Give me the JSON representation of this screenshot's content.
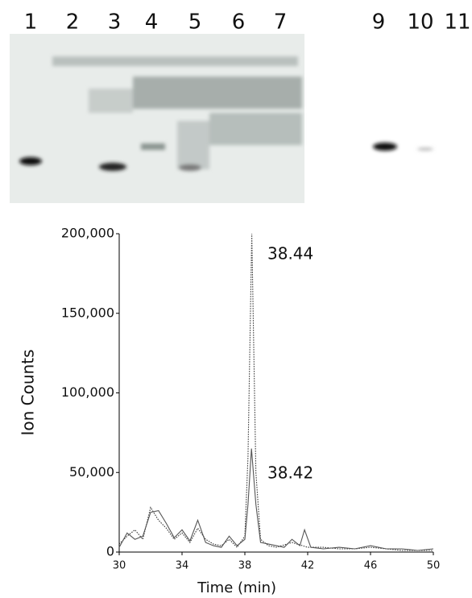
{
  "gel": {
    "lanes": [
      "1",
      "2",
      "3",
      "4",
      "5",
      "6",
      "7",
      "9",
      "10",
      "11"
    ]
  },
  "chart_data": {
    "type": "line",
    "xlabel": "Time (min)",
    "ylabel": "Ion Counts",
    "annotations": [
      "38.44",
      "38.42"
    ],
    "xlim": [
      30,
      50
    ],
    "xticks": [
      30,
      34,
      38,
      42,
      46,
      50
    ],
    "ylim": [
      0,
      200000
    ],
    "yticks": [
      0,
      {
        "value": 50000,
        "label": "50,000"
      },
      {
        "value": 100000,
        "label": "100,000"
      },
      {
        "value": 150000,
        "label": "150,000"
      },
      {
        "value": 200000,
        "label": "200,000"
      }
    ],
    "series": [
      {
        "color": "#333333",
        "dash": true,
        "x": [
          30,
          30.5,
          31,
          31.5,
          32,
          32.5,
          33,
          33.5,
          34,
          34.5,
          35,
          35.5,
          36,
          36.5,
          37,
          37.5,
          38,
          38.2,
          38.44,
          38.7,
          39,
          39.5,
          40,
          41,
          42,
          43,
          44,
          45,
          46,
          47,
          48,
          49,
          50
        ],
        "values": [
          5000,
          10000,
          14000,
          8000,
          28000,
          20000,
          15000,
          8000,
          12000,
          6000,
          15000,
          8000,
          5000,
          4000,
          8000,
          3000,
          10000,
          60000,
          200000,
          50000,
          8000,
          4000,
          3000,
          6000,
          3000,
          3000,
          2000,
          2000,
          3000,
          2000,
          1000,
          1000,
          1000
        ]
      },
      {
        "color": "#555555",
        "dash": false,
        "x": [
          30,
          30.5,
          31,
          31.5,
          32,
          32.5,
          33,
          33.5,
          34,
          34.5,
          35,
          35.5,
          36,
          36.5,
          37,
          37.5,
          38,
          38.2,
          38.42,
          38.7,
          39,
          39.5,
          40,
          40.5,
          41,
          41.5,
          41.8,
          42.2,
          43,
          44,
          45,
          46,
          47,
          48,
          49,
          50
        ],
        "values": [
          3000,
          12000,
          8000,
          10000,
          25000,
          26000,
          18000,
          9000,
          14000,
          7000,
          20000,
          6000,
          4000,
          3000,
          10000,
          4000,
          8000,
          30000,
          65000,
          30000,
          6000,
          5000,
          4000,
          3000,
          8000,
          4000,
          14000,
          3000,
          2000,
          3000,
          2000,
          4000,
          2000,
          2000,
          1000,
          2000
        ]
      }
    ]
  }
}
